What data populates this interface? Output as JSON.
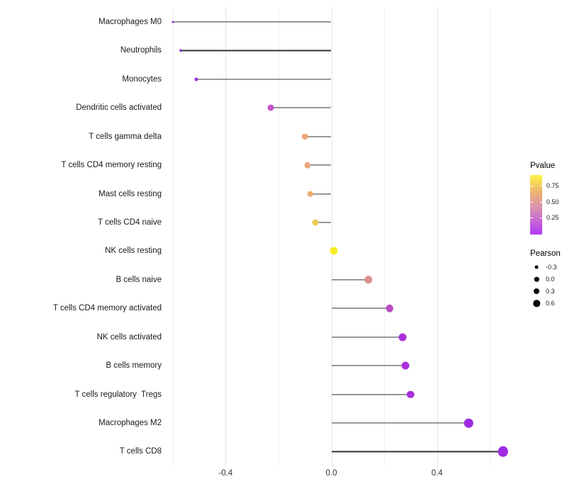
{
  "chart_data": {
    "type": "lollipop",
    "title": "",
    "xlabel": "",
    "ylabel": "",
    "x_axis": {
      "major_ticks": [
        -0.4,
        0.0,
        0.4
      ],
      "major_tick_labels": [
        "-0.4",
        "0.0",
        "0.4"
      ],
      "minor_ticks": [
        -0.6,
        -0.2,
        0.2,
        0.6
      ],
      "range": [
        -0.62,
        0.67
      ]
    },
    "points": [
      {
        "label": "Macrophages M0",
        "pearson": -0.6,
        "color": "#8f2be2",
        "diameter": 3
      },
      {
        "label": "Neutrophils",
        "pearson": -0.57,
        "color": "#8f2be2",
        "diameter": 3.5
      },
      {
        "label": "Monocytes",
        "pearson": -0.51,
        "color": "#9730e2",
        "diameter": 5
      },
      {
        "label": "Dendritic cells activated",
        "pearson": -0.23,
        "color": "#c455cb",
        "diameter": 9
      },
      {
        "label": "T cells gamma delta",
        "pearson": -0.1,
        "color": "#eaa678",
        "diameter": 8.5
      },
      {
        "label": "T cells CD4 memory resting",
        "pearson": -0.09,
        "color": "#eaa678",
        "diameter": 8.5
      },
      {
        "label": "Mast cells resting",
        "pearson": -0.08,
        "color": "#ecab6e",
        "diameter": 8.5
      },
      {
        "label": "T cells CD4 naive",
        "pearson": -0.06,
        "color": "#eec95a",
        "diameter": 9
      },
      {
        "label": "NK cells resting",
        "pearson": 0.01,
        "color": "#f6ee26",
        "diameter": 11
      },
      {
        "label": "B cells naive",
        "pearson": 0.14,
        "color": "#dc8e95",
        "diameter": 11.5
      },
      {
        "label": "T cells CD4 memory activated",
        "pearson": 0.22,
        "color": "#bc49c6",
        "diameter": 10.5
      },
      {
        "label": "NK cells activated",
        "pearson": 0.27,
        "color": "#ab32d8",
        "diameter": 11
      },
      {
        "label": "B cells memory",
        "pearson": 0.28,
        "color": "#a930da",
        "diameter": 11
      },
      {
        "label": "T cells regulatory  Tregs",
        "pearson": 0.3,
        "color": "#a930da",
        "diameter": 10.5
      },
      {
        "label": "Macrophages M2",
        "pearson": 0.52,
        "color": "#9d2ae2",
        "diameter": 12.5
      },
      {
        "label": "T cells CD8",
        "pearson": 0.65,
        "color": "#a02ae6",
        "diameter": 14.5
      }
    ],
    "stem_color": "#333333",
    "legends": {
      "pvalue": {
        "title": "Pvalue",
        "tick_values": [
          0.75,
          0.5,
          0.25
        ],
        "tick_labels": [
          "0.75",
          "0.50",
          "0.25"
        ],
        "scale_min": -0.02,
        "scale_max": 0.92,
        "gradient_stops": [
          {
            "pos": 0,
            "color": "#b33cf4"
          },
          {
            "pos": 18,
            "color": "#c25bdd"
          },
          {
            "pos": 33,
            "color": "#cf7bc4"
          },
          {
            "pos": 48,
            "color": "#dc96a9"
          },
          {
            "pos": 63,
            "color": "#e8a783"
          },
          {
            "pos": 78,
            "color": "#f0c167"
          },
          {
            "pos": 90,
            "color": "#f8de52"
          },
          {
            "pos": 100,
            "color": "#fcf44c"
          }
        ]
      },
      "pearson": {
        "title": "Pearson",
        "dot_color": "#000000",
        "items": [
          {
            "label": "-0.3",
            "size": 5
          },
          {
            "label": "0.0",
            "size": 6.5
          },
          {
            "label": "0.3",
            "size": 8
          },
          {
            "label": "0.6",
            "size": 9.5
          }
        ]
      }
    }
  }
}
